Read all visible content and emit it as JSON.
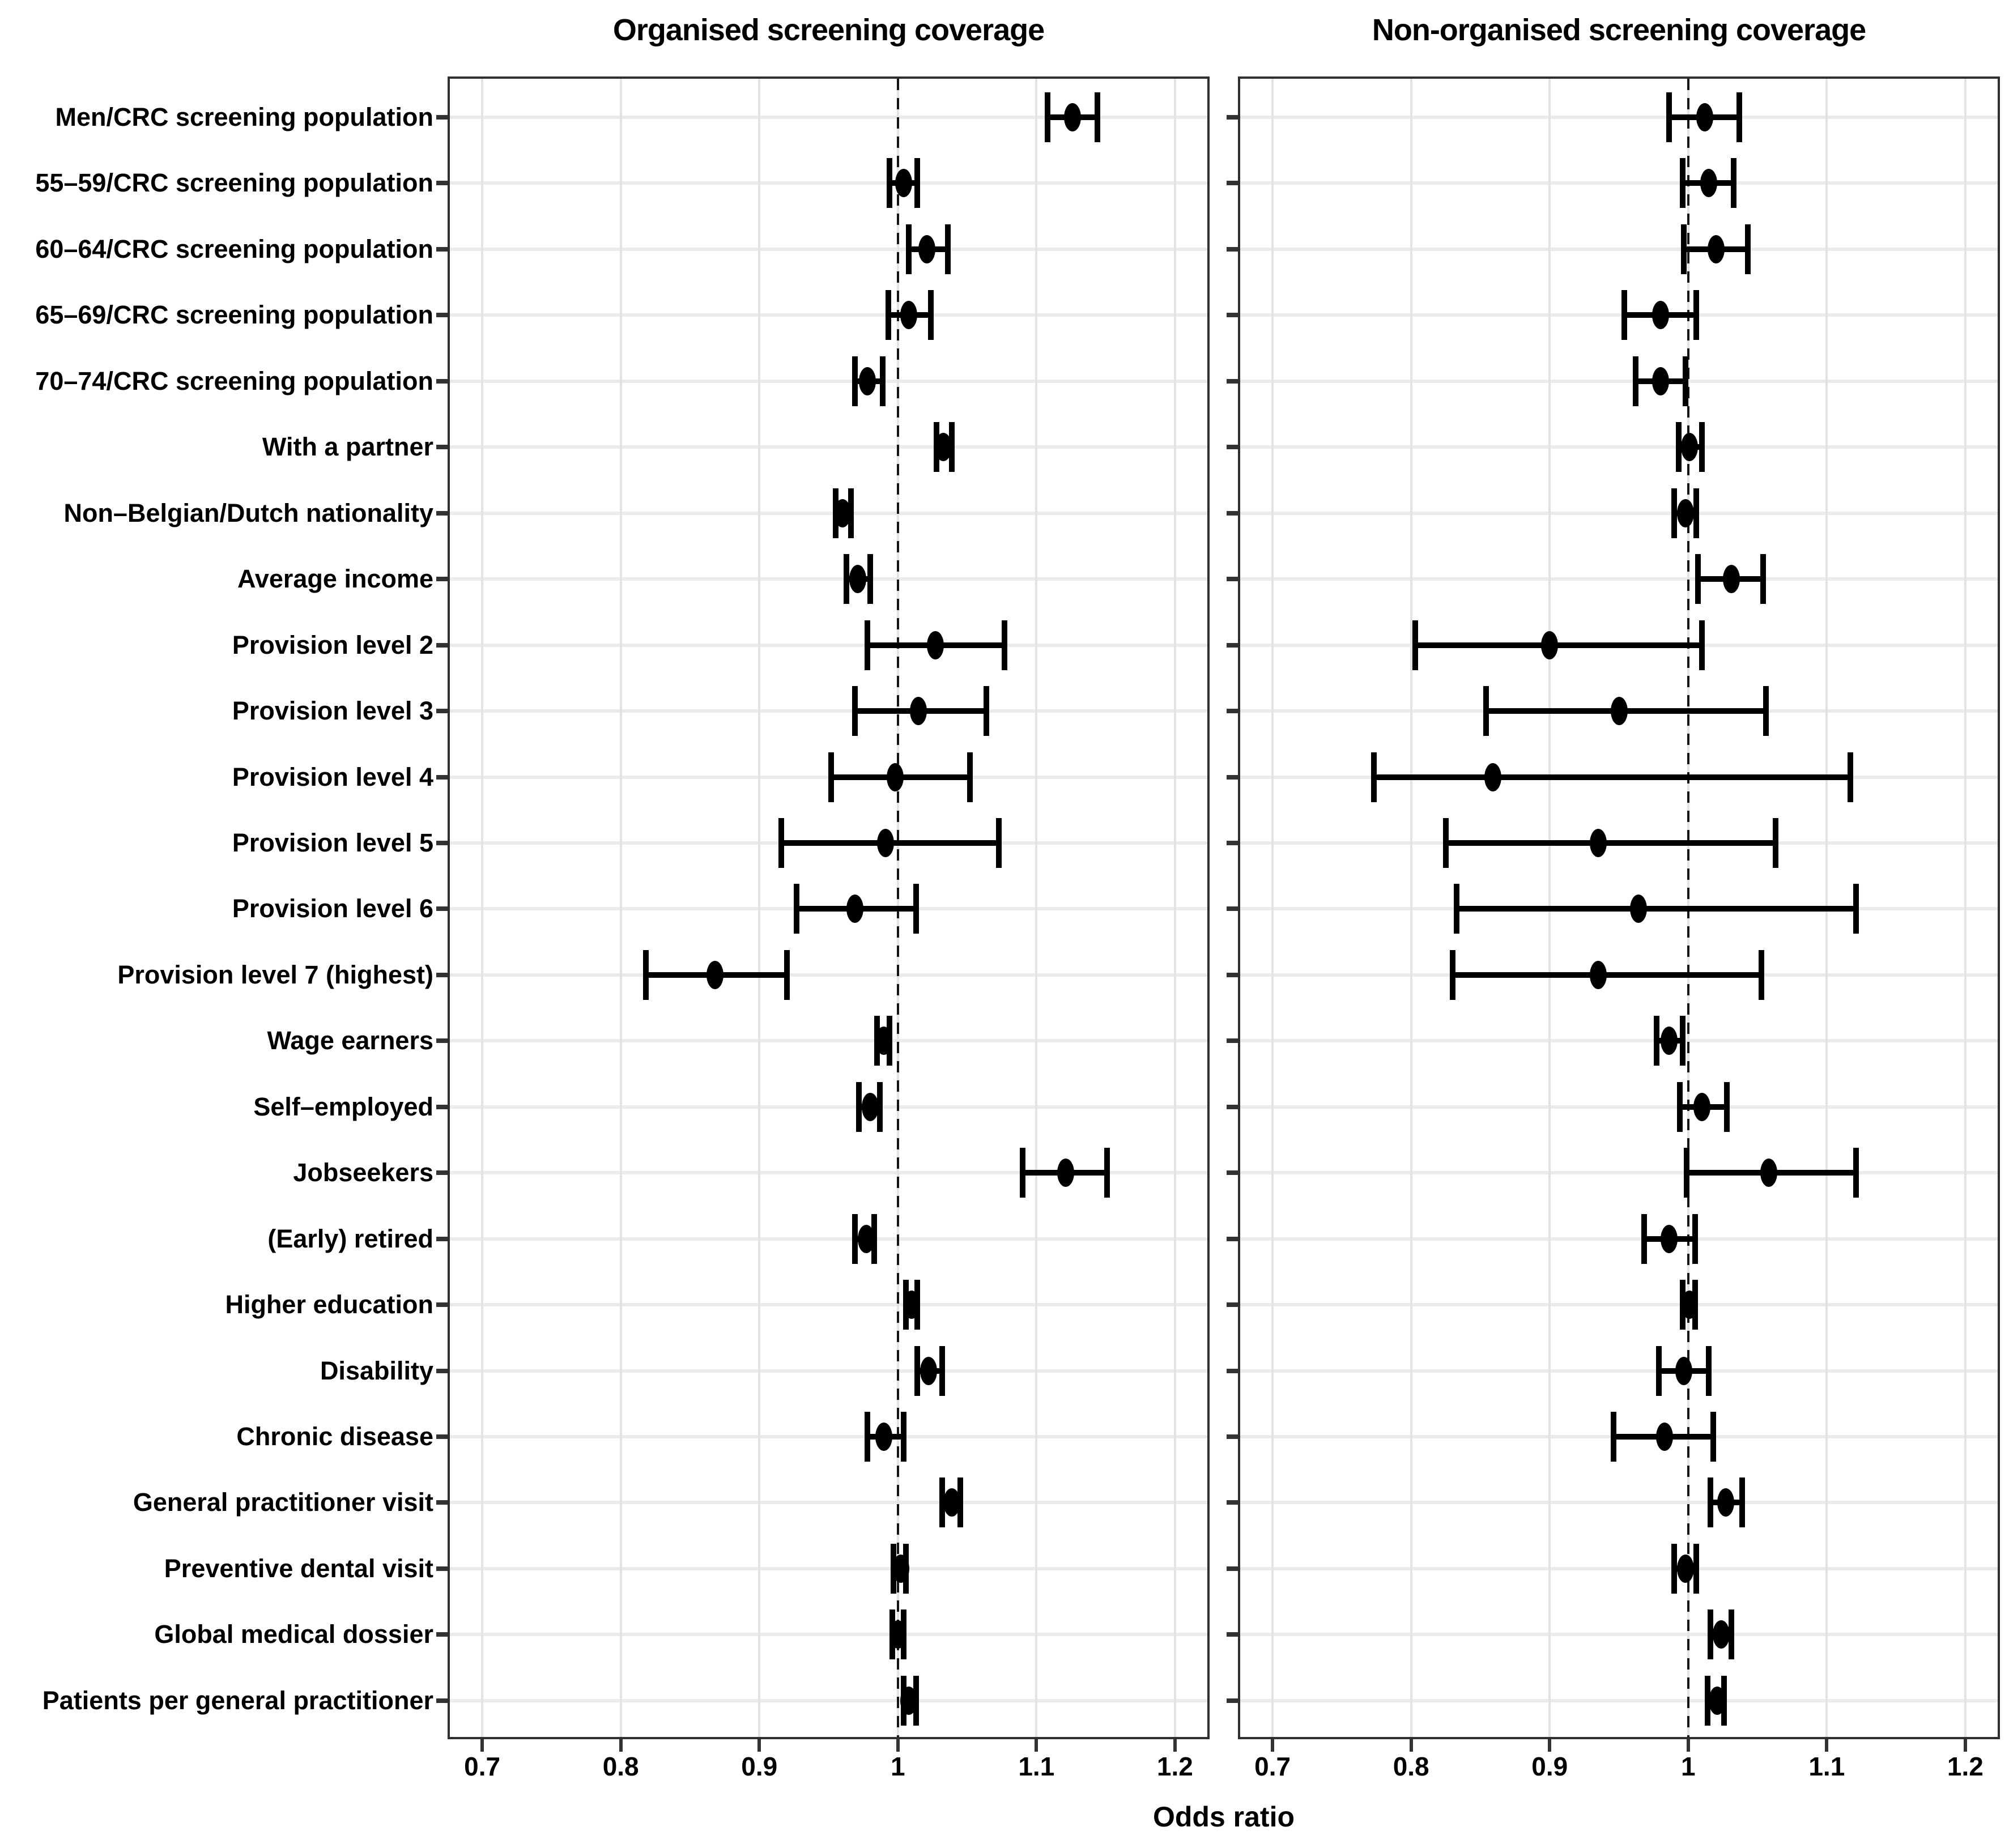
{
  "chart_data": {
    "type": "scatter",
    "subtype": "forest-plot-odds-ratios-with-95ci",
    "xlabel": "Odds ratio",
    "xlim": [
      0.675,
      1.225
    ],
    "x_ticks": [
      0.7,
      0.8,
      0.9,
      1.0,
      1.1,
      1.2
    ],
    "x_tick_labels": [
      "0.7",
      "0.8",
      "0.9",
      "1",
      "1.1",
      "1.2"
    ],
    "reference_line_x": 1.0,
    "grid": "major-gridlines-both-axes",
    "legend": "none",
    "colors": {
      "marker": "#000000",
      "gridline": "#ebebeb",
      "panel_border": "#2f2f2f",
      "reference_line": "#141414"
    },
    "categories": [
      "Men/CRC screening population",
      "55–59/CRC screening population",
      "60–64/CRC screening population",
      "65–69/CRC screening population",
      "70–74/CRC screening population",
      "With a partner",
      "Non–Belgian/Dutch nationality",
      "Average income",
      "Provision level 2",
      "Provision level 3",
      "Provision level 4",
      "Provision level 5",
      "Provision level 6",
      "Provision level 7 (highest)",
      "Wage earners",
      "Self–employed",
      "Jobseekers",
      "(Early) retired",
      "Higher education",
      "Disability",
      "Chronic disease",
      "General practitioner visit",
      "Preventive dental visit",
      "Global medical dossier",
      "Patients per general practitioner"
    ],
    "panels": [
      {
        "title": "Organised screening coverage",
        "estimates": [
          1.126,
          1.004,
          1.021,
          1.008,
          0.978,
          1.033,
          0.96,
          0.971,
          1.027,
          1.015,
          0.998,
          0.991,
          0.969,
          0.868,
          0.99,
          0.98,
          1.121,
          0.977,
          1.01,
          1.022,
          0.99,
          1.039,
          1.002,
          1.0,
          1.008
        ],
        "ci_low": [
          1.108,
          0.994,
          1.008,
          0.993,
          0.969,
          1.028,
          0.955,
          0.963,
          0.978,
          0.969,
          0.952,
          0.916,
          0.927,
          0.818,
          0.985,
          0.972,
          1.09,
          0.969,
          1.006,
          1.014,
          0.978,
          1.032,
          0.997,
          0.996,
          1.004
        ],
        "ci_high": [
          1.144,
          1.014,
          1.036,
          1.024,
          0.989,
          1.039,
          0.966,
          0.98,
          1.077,
          1.064,
          1.052,
          1.073,
          1.013,
          0.92,
          0.994,
          0.987,
          1.151,
          0.983,
          1.014,
          1.032,
          1.004,
          1.045,
          1.006,
          1.004,
          1.013
        ]
      },
      {
        "title": "Non-organised screening coverage",
        "estimates": [
          1.012,
          1.015,
          1.02,
          0.98,
          0.98,
          1.001,
          0.998,
          1.031,
          0.9,
          0.95,
          0.859,
          0.935,
          0.964,
          0.935,
          0.986,
          1.01,
          1.058,
          0.986,
          1.001,
          0.997,
          0.983,
          1.027,
          0.998,
          1.024,
          1.021
        ],
        "ci_low": [
          0.986,
          0.996,
          0.997,
          0.954,
          0.962,
          0.993,
          0.99,
          1.007,
          0.803,
          0.854,
          0.773,
          0.825,
          0.833,
          0.83,
          0.977,
          0.994,
          0.999,
          0.968,
          0.996,
          0.979,
          0.946,
          1.016,
          0.99,
          1.016,
          1.014
        ],
        "ci_high": [
          1.037,
          1.033,
          1.043,
          1.006,
          0.998,
          1.01,
          1.006,
          1.054,
          1.01,
          1.056,
          1.117,
          1.063,
          1.121,
          1.053,
          0.996,
          1.028,
          1.121,
          1.005,
          1.005,
          1.015,
          1.018,
          1.039,
          1.006,
          1.031,
          1.026
        ]
      }
    ]
  }
}
